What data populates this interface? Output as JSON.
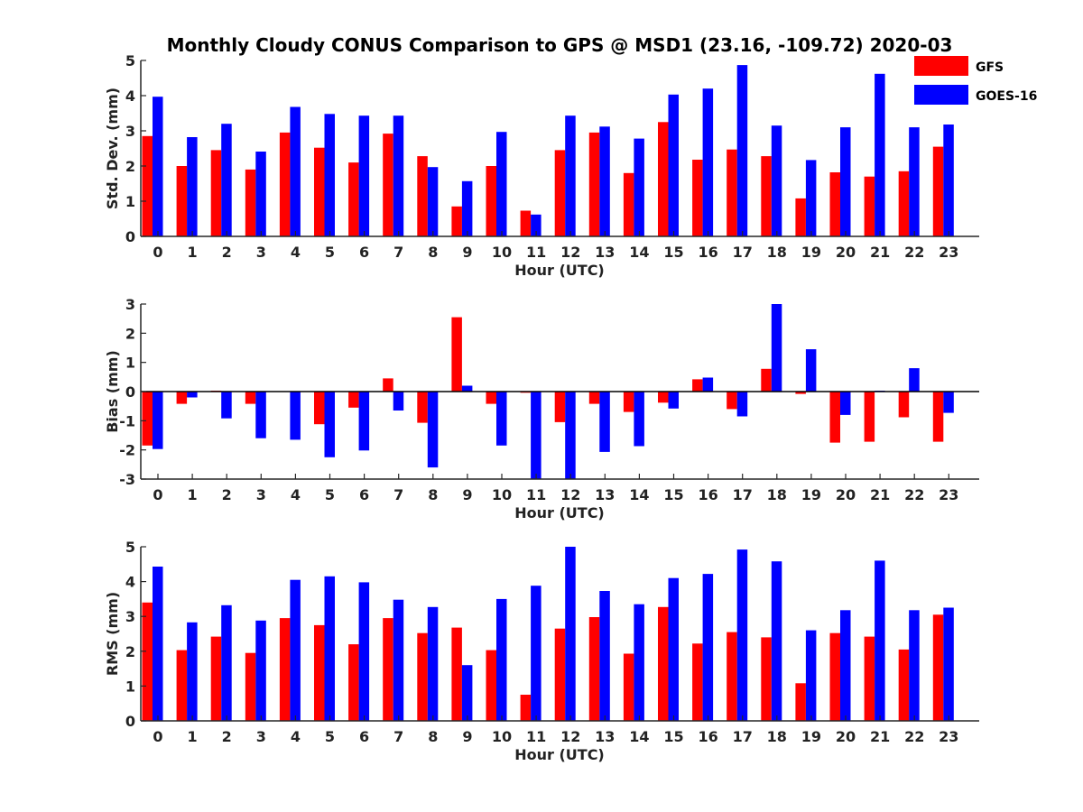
{
  "figure_title": "Monthly Cloudy CONUS Comparison to GPS @ MSD1 (23.16, -109.72) 2020-03",
  "colors": {
    "GFS": "#ff0000",
    "GOES-16": "#0000ff"
  },
  "legend": {
    "location": "top-right",
    "entries": [
      "GFS",
      "GOES-16"
    ]
  },
  "chart_data": [
    {
      "type": "bar",
      "xlabel": "Hour (UTC)",
      "ylabel": "Std. Dev. (mm)",
      "ylim": [
        0,
        5
      ],
      "yticks": [
        0,
        1,
        2,
        3,
        4,
        5
      ],
      "categories": [
        "0",
        "1",
        "2",
        "3",
        "4",
        "5",
        "6",
        "7",
        "8",
        "9",
        "10",
        "11",
        "12",
        "13",
        "14",
        "15",
        "16",
        "17",
        "18",
        "19",
        "20",
        "21",
        "22",
        "23"
      ],
      "series": [
        {
          "name": "GFS",
          "values": [
            2.85,
            2.0,
            2.45,
            1.9,
            2.95,
            2.52,
            2.1,
            2.92,
            2.28,
            0.85,
            2.0,
            0.73,
            2.45,
            2.95,
            1.8,
            3.25,
            2.18,
            2.47,
            2.28,
            1.08,
            1.82,
            1.7,
            1.85,
            2.55
          ]
        },
        {
          "name": "GOES-16",
          "values": [
            3.97,
            2.82,
            3.2,
            2.41,
            3.68,
            3.48,
            3.43,
            3.43,
            1.97,
            1.57,
            2.97,
            0.62,
            3.43,
            3.12,
            2.78,
            4.03,
            4.2,
            4.87,
            3.15,
            2.17,
            3.1,
            4.62,
            3.1,
            3.18
          ]
        }
      ]
    },
    {
      "type": "bar",
      "xlabel": "Hour (UTC)",
      "ylabel": "Bias (mm)",
      "ylim": [
        -3,
        3
      ],
      "yticks": [
        -3,
        -2,
        -1,
        0,
        1,
        2,
        3
      ],
      "categories": [
        "0",
        "1",
        "2",
        "3",
        "4",
        "5",
        "6",
        "7",
        "8",
        "9",
        "10",
        "11",
        "12",
        "13",
        "14",
        "15",
        "16",
        "17",
        "18",
        "19",
        "20",
        "21",
        "22",
        "23"
      ],
      "series": [
        {
          "name": "GFS",
          "values": [
            -1.85,
            -0.42,
            0.03,
            -0.42,
            0.0,
            -1.12,
            -0.55,
            0.45,
            -1.07,
            2.55,
            -0.42,
            -0.04,
            -1.05,
            -0.42,
            -0.7,
            -0.38,
            0.42,
            -0.6,
            0.78,
            -0.08,
            -1.75,
            -1.72,
            -0.88,
            -1.72
          ]
        },
        {
          "name": "GOES-16",
          "values": [
            -1.97,
            -0.2,
            -0.92,
            -1.6,
            -1.65,
            -2.25,
            -2.02,
            -0.65,
            -2.6,
            0.2,
            -1.85,
            -3.0,
            -3.0,
            -2.07,
            -1.87,
            -0.58,
            0.48,
            -0.85,
            3.0,
            1.45,
            -0.8,
            0.03,
            0.8,
            -0.73
          ]
        }
      ]
    },
    {
      "type": "bar",
      "xlabel": "Hour (UTC)",
      "ylabel": "RMS (mm)",
      "ylim": [
        0,
        5
      ],
      "yticks": [
        0,
        1,
        2,
        3,
        4,
        5
      ],
      "categories": [
        "0",
        "1",
        "2",
        "3",
        "4",
        "5",
        "6",
        "7",
        "8",
        "9",
        "10",
        "11",
        "12",
        "13",
        "14",
        "15",
        "16",
        "17",
        "18",
        "19",
        "20",
        "21",
        "22",
        "23"
      ],
      "series": [
        {
          "name": "GFS",
          "values": [
            3.4,
            2.03,
            2.42,
            1.95,
            2.95,
            2.75,
            2.2,
            2.95,
            2.52,
            2.68,
            2.03,
            0.75,
            2.65,
            2.98,
            1.93,
            3.27,
            2.22,
            2.55,
            2.4,
            1.08,
            2.52,
            2.42,
            2.05,
            3.05
          ]
        },
        {
          "name": "GOES-16",
          "values": [
            4.43,
            2.83,
            3.32,
            2.88,
            4.05,
            4.15,
            3.98,
            3.48,
            3.27,
            1.6,
            3.5,
            3.88,
            5.0,
            3.73,
            3.35,
            4.1,
            4.22,
            4.92,
            4.58,
            2.6,
            3.18,
            4.6,
            3.18,
            3.25
          ]
        }
      ]
    }
  ]
}
